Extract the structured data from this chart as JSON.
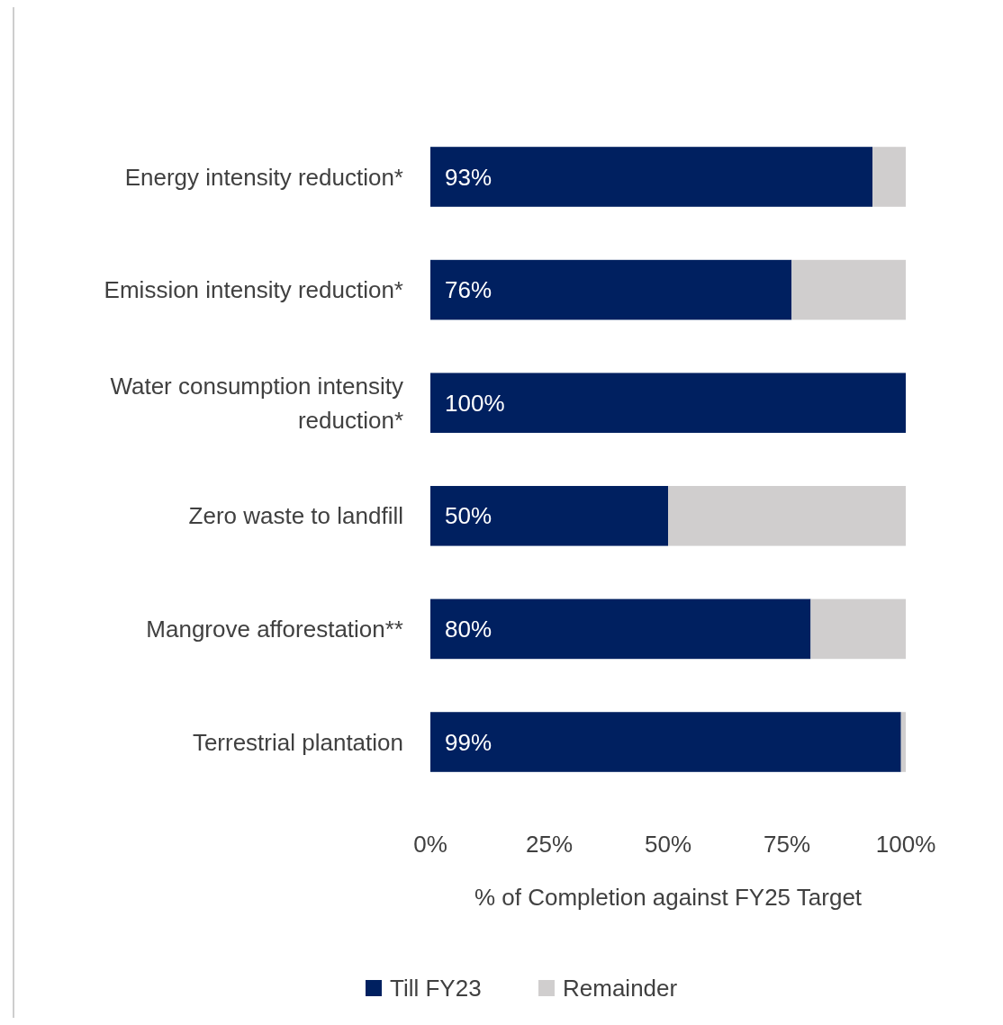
{
  "chart_data": {
    "type": "bar",
    "orientation": "horizontal",
    "stacked": true,
    "categories": [
      "Energy intensity reduction*",
      "Emission intensity reduction*",
      "Water consumption intensity reduction*",
      "Zero waste to landfill",
      "Mangrove afforestation**",
      "Terrestrial plantation"
    ],
    "series": [
      {
        "name": "Till FY23",
        "color": "#002060",
        "values": [
          93,
          76,
          100,
          50,
          80,
          99
        ],
        "value_labels": [
          "93%",
          "76%",
          "100%",
          "50%",
          "80%",
          "99%"
        ]
      },
      {
        "name": "Remainder",
        "color": "#d0cece",
        "values": [
          7,
          24,
          0,
          50,
          20,
          1
        ]
      }
    ],
    "xlim": [
      0,
      100
    ],
    "xticks": [
      {
        "value": 0,
        "label": "0%"
      },
      {
        "value": 25,
        "label": "25%"
      },
      {
        "value": 50,
        "label": "50%"
      },
      {
        "value": 75,
        "label": "75%"
      },
      {
        "value": 100,
        "label": "100%"
      }
    ],
    "xlabel": "% of Completion against FY25 Target",
    "grid": false,
    "legend": "bottom"
  }
}
